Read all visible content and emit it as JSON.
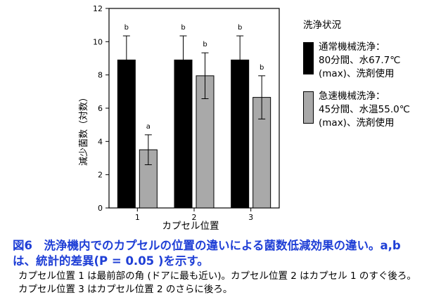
{
  "chart_data": {
    "type": "bar",
    "categories": [
      "1",
      "2",
      "3"
    ],
    "xlabel": "カプセル位置",
    "ylabel": "減少菌数（対数）",
    "ylim": [
      0,
      12
    ],
    "yticks": [
      "0",
      "2",
      "4",
      "6",
      "8",
      "10",
      "12"
    ],
    "grid": false,
    "legend_placement": "right",
    "series": [
      {
        "name": "通常機械洗浄：80分間、水67.7℃(max)、洗剤使用",
        "color": "#000000",
        "values": [
          8.9,
          8.9,
          8.9
        ],
        "errors": [
          1.45,
          1.45,
          1.45
        ],
        "letters": [
          "b",
          "b",
          "b"
        ]
      },
      {
        "name": "急速機械洗浄：45分間、水温55.0℃(max)、洗剤使用",
        "color": "#a9a9a9",
        "values": [
          3.5,
          7.95,
          6.65
        ],
        "errors": [
          0.9,
          1.38,
          1.3
        ],
        "letters": [
          "a",
          "b",
          "b"
        ]
      }
    ]
  },
  "legend": {
    "title": "洗浄状況",
    "entries": [
      {
        "color": "#000000",
        "lines": [
          "通常機械洗浄：",
          "80分間、水67.7℃",
          "(max)、洗剤使用"
        ]
      },
      {
        "color": "#a9a9a9",
        "lines": [
          "急速機械洗浄：",
          "45分間、水温55.0℃",
          "(max)、洗剤使用"
        ]
      }
    ]
  },
  "caption": {
    "title": "図6　洗浄機内でのカプセルの位置の違いによる菌数低減効果の違い。a,bは、統計的差異(P = 0.05 )を示す。",
    "body": "カプセル位置 1 は最前部の角 (ドアに最も近い)。カプセル位置 2 はカプセル 1 のすぐ後ろ。カプセル位置 3 はカプセル位置 2 のさらに後ろ。"
  }
}
